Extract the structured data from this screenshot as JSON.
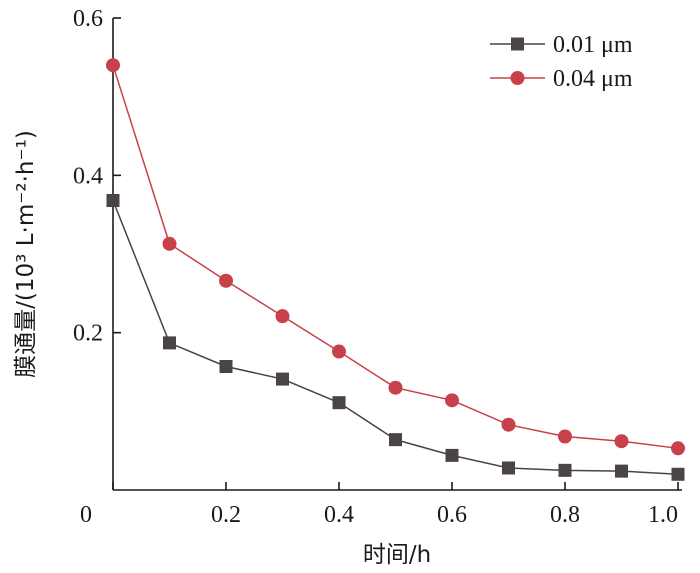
{
  "chart_data": {
    "type": "line",
    "xlabel": "时间/h",
    "ylabel": "膜通量/(10³ L·m⁻²·h⁻¹)",
    "xlim": [
      0,
      1.0
    ],
    "ylim": [
      0,
      0.6
    ],
    "x_ticks": [
      "0",
      "0.2",
      "0.4",
      "0.6",
      "0.8",
      "1.0"
    ],
    "y_ticks": [
      "0.2",
      "0.4",
      "0.6"
    ],
    "grid": false,
    "legend_position": "top-right",
    "series": [
      {
        "name": "0.01 μm",
        "marker": "square",
        "color": "#4a4444",
        "x": [
          0,
          0.1,
          0.2,
          0.3,
          0.4,
          0.5,
          0.6,
          0.7,
          0.8,
          0.9,
          1.0
        ],
        "y": [
          0.368,
          0.187,
          0.157,
          0.141,
          0.111,
          0.064,
          0.044,
          0.028,
          0.025,
          0.024,
          0.02
        ]
      },
      {
        "name": "0.04 μm",
        "marker": "circle",
        "color": "#c8404a",
        "x": [
          0,
          0.1,
          0.2,
          0.3,
          0.4,
          0.5,
          0.6,
          0.7,
          0.8,
          0.9,
          1.0
        ],
        "y": [
          0.54,
          0.313,
          0.266,
          0.221,
          0.176,
          0.13,
          0.114,
          0.083,
          0.068,
          0.062,
          0.053
        ]
      }
    ]
  }
}
